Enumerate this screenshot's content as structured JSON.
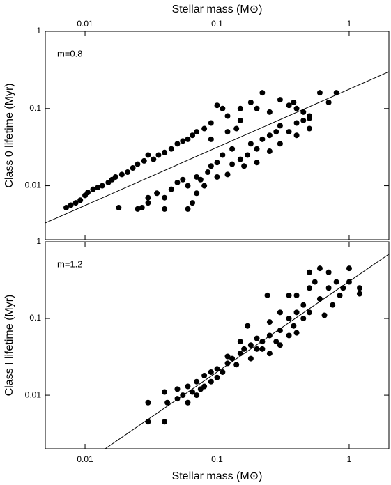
{
  "chart_data": [
    {
      "type": "scatter",
      "xlabel": "Stellar mass (M⊙)",
      "ylabel": "Class 0 lifetime (Myr)",
      "xaxis_position": "top",
      "xscale": "log",
      "yscale": "log",
      "xlim": [
        0.005,
        2
      ],
      "ylim": [
        0.002,
        1
      ],
      "xticks": [
        0.01,
        0.1,
        1
      ],
      "yticks": [
        0.01,
        0.1,
        1
      ],
      "color": "#000000",
      "annotation": "m=0.8",
      "fit_line": {
        "x": [
          0.005,
          2
        ],
        "y": [
          0.0033,
          0.3
        ]
      },
      "x": [
        0.0072,
        0.0078,
        0.0085,
        0.0092,
        0.01,
        0.0105,
        0.0115,
        0.0125,
        0.0135,
        0.015,
        0.016,
        0.017,
        0.019,
        0.021,
        0.023,
        0.025,
        0.028,
        0.03,
        0.033,
        0.036,
        0.04,
        0.045,
        0.05,
        0.055,
        0.06,
        0.065,
        0.07,
        0.08,
        0.09,
        0.1,
        0.11,
        0.12,
        0.15,
        0.15,
        0.18,
        0.2,
        0.22,
        0.25,
        0.3,
        0.35,
        0.38,
        0.4,
        0.45,
        0.5,
        0.6,
        0.7,
        0.8,
        0.09,
        0.12,
        0.14,
        0.018,
        0.025,
        0.027,
        0.03,
        0.03,
        0.035,
        0.04,
        0.04,
        0.045,
        0.05,
        0.055,
        0.06,
        0.06,
        0.065,
        0.07,
        0.07,
        0.075,
        0.08,
        0.085,
        0.09,
        0.1,
        0.1,
        0.11,
        0.12,
        0.13,
        0.13,
        0.15,
        0.16,
        0.17,
        0.18,
        0.2,
        0.2,
        0.22,
        0.25,
        0.25,
        0.28,
        0.3,
        0.3,
        0.35,
        0.4,
        0.4,
        0.45,
        0.5,
        0.5
      ],
      "y": [
        0.0052,
        0.0056,
        0.006,
        0.0065,
        0.0075,
        0.0082,
        0.009,
        0.0095,
        0.01,
        0.011,
        0.012,
        0.013,
        0.014,
        0.015,
        0.017,
        0.019,
        0.021,
        0.025,
        0.022,
        0.025,
        0.027,
        0.03,
        0.035,
        0.038,
        0.04,
        0.045,
        0.05,
        0.055,
        0.065,
        0.11,
        0.1,
        0.08,
        0.07,
        0.1,
        0.12,
        0.1,
        0.16,
        0.09,
        0.13,
        0.11,
        0.12,
        0.1,
        0.09,
        0.08,
        0.16,
        0.12,
        0.16,
        0.04,
        0.05,
        0.055,
        0.0052,
        0.005,
        0.0052,
        0.006,
        0.007,
        0.008,
        0.005,
        0.007,
        0.009,
        0.011,
        0.012,
        0.01,
        0.005,
        0.006,
        0.008,
        0.013,
        0.012,
        0.01,
        0.015,
        0.018,
        0.013,
        0.02,
        0.025,
        0.014,
        0.019,
        0.03,
        0.022,
        0.018,
        0.025,
        0.035,
        0.03,
        0.02,
        0.04,
        0.045,
        0.028,
        0.05,
        0.035,
        0.06,
        0.05,
        0.065,
        0.045,
        0.07,
        0.075,
        0.055
      ]
    },
    {
      "type": "scatter",
      "xlabel": "Stellar mass (M⊙)",
      "ylabel": "Class I lifetime (Myr)",
      "xaxis_position": "bottom",
      "xscale": "log",
      "yscale": "log",
      "xlim": [
        0.005,
        2
      ],
      "ylim": [
        0.002,
        1
      ],
      "xticks": [
        0.01,
        0.1,
        1
      ],
      "yticks": [
        0.01,
        0.1,
        1
      ],
      "color": "#000000",
      "annotation": "m=1.2",
      "fit_line": {
        "x": [
          0.0142,
          2
        ],
        "y": [
          0.002,
          0.69
        ]
      },
      "x": [
        0.03,
        0.03,
        0.04,
        0.04,
        0.042,
        0.05,
        0.05,
        0.055,
        0.06,
        0.06,
        0.065,
        0.07,
        0.07,
        0.075,
        0.08,
        0.08,
        0.09,
        0.09,
        0.1,
        0.1,
        0.11,
        0.12,
        0.12,
        0.13,
        0.14,
        0.15,
        0.15,
        0.16,
        0.18,
        0.18,
        0.2,
        0.2,
        0.22,
        0.22,
        0.25,
        0.25,
        0.25,
        0.28,
        0.3,
        0.3,
        0.3,
        0.35,
        0.35,
        0.38,
        0.4,
        0.4,
        0.4,
        0.45,
        0.45,
        0.5,
        0.5,
        0.5,
        0.55,
        0.6,
        0.6,
        0.65,
        0.7,
        0.7,
        0.75,
        0.8,
        0.85,
        0.9,
        1.0,
        1.0,
        1.2,
        1.2,
        0.35,
        0.24,
        0.17
      ],
      "y": [
        0.0045,
        0.008,
        0.0045,
        0.011,
        0.008,
        0.009,
        0.012,
        0.01,
        0.008,
        0.013,
        0.011,
        0.015,
        0.01,
        0.012,
        0.018,
        0.013,
        0.015,
        0.02,
        0.017,
        0.022,
        0.02,
        0.026,
        0.032,
        0.03,
        0.025,
        0.035,
        0.05,
        0.04,
        0.03,
        0.045,
        0.04,
        0.055,
        0.05,
        0.04,
        0.06,
        0.035,
        0.09,
        0.05,
        0.07,
        0.045,
        0.12,
        0.06,
        0.1,
        0.08,
        0.12,
        0.065,
        0.2,
        0.1,
        0.15,
        0.25,
        0.4,
        0.12,
        0.3,
        0.18,
        0.45,
        0.11,
        0.25,
        0.4,
        0.15,
        0.3,
        0.2,
        0.25,
        0.45,
        0.3,
        0.25,
        0.21,
        0.2,
        0.2,
        0.08
      ]
    }
  ]
}
